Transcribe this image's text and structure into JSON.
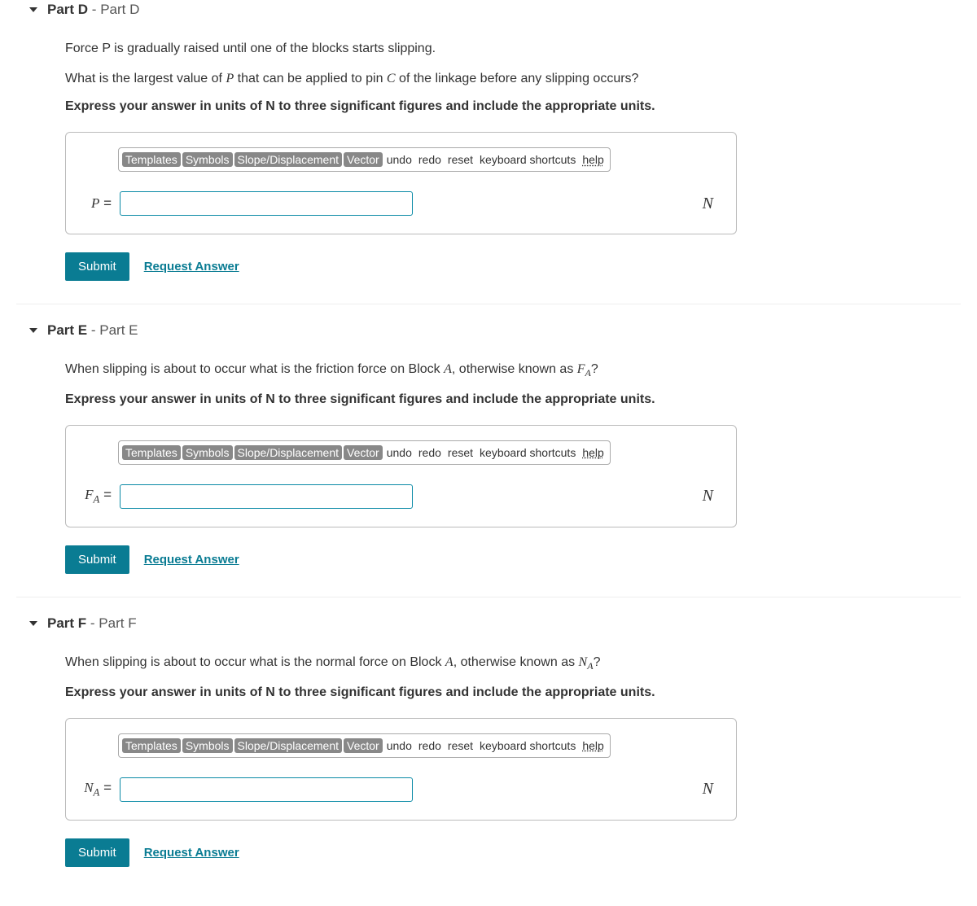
{
  "toolbar": {
    "templates": "Templates",
    "symbols": "Symbols",
    "slope": "Slope/Displacement",
    "vector": "Vector",
    "undo": "undo",
    "redo": "redo",
    "reset": "reset",
    "keyboard_shortcuts": "keyboard shortcuts",
    "help": "help"
  },
  "actions": {
    "submit": "Submit",
    "request_answer": "Request Answer"
  },
  "common": {
    "hint": "Express your answer in units of N to three significant figures and include the appropriate units.",
    "unit": "N"
  },
  "parts": {
    "d": {
      "header_bold": "Part D",
      "header_sep": " - ",
      "header_reg": "Part D",
      "line1": "Force P is gradually raised until one of the blocks starts slipping.",
      "line2_pre": "What is the largest value of ",
      "line2_mid": " that can be applied to pin ",
      "line2_post": " of the linkage before any slipping occurs?",
      "var_P": "P",
      "var_C": "C",
      "label_var": "P",
      "label_eq": " ="
    },
    "e": {
      "header_bold": "Part E",
      "header_sep": " - ",
      "header_reg": "Part E",
      "line1_pre": "When slipping is about to occur what is the friction force on Block ",
      "line1_A": "A",
      "line1_mid": ", otherwise known as ",
      "line1_F": "F",
      "line1_sub": "A",
      "line1_post": "?",
      "label_F": "F",
      "label_sub": "A",
      "label_eq": " ="
    },
    "f": {
      "header_bold": "Part F",
      "header_sep": " - ",
      "header_reg": "Part F",
      "line1_pre": "When slipping is about to occur what is the normal force on Block ",
      "line1_A": "A",
      "line1_mid": ", otherwise known as ",
      "line1_N": "N",
      "line1_sub": "A",
      "line1_post": "?",
      "label_N": "N",
      "label_sub": "A",
      "label_eq": " ="
    }
  }
}
